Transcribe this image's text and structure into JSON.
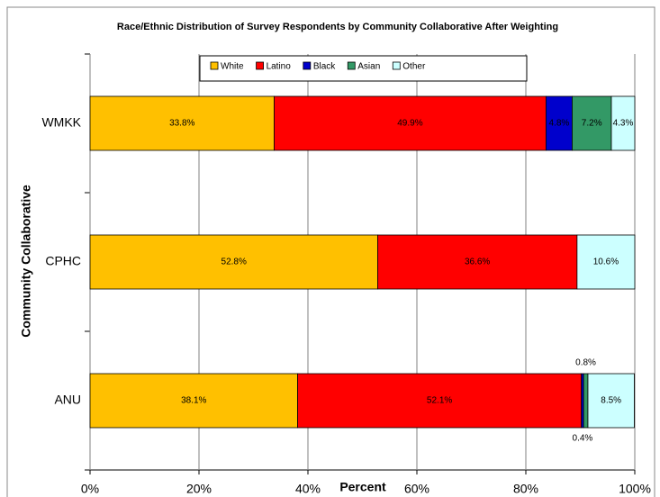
{
  "chart_data": {
    "type": "stacked-bar-horizontal",
    "title": "Race/Ethnic Distribution of Survey Respondents by Community Collaborative After Weighting",
    "x_label": "Percent",
    "y_label": "Community Collaborative",
    "categories": [
      "WMKK",
      "CPHC",
      "ANU"
    ],
    "series": [
      {
        "name": "White",
        "color": "#ffc000",
        "values": [
          33.8,
          52.8,
          38.1
        ],
        "value_labels": [
          "33.8%",
          "52.8%",
          "38.1%"
        ]
      },
      {
        "name": "Latino",
        "color": "#ff0000",
        "values": [
          49.9,
          36.6,
          52.1
        ],
        "value_labels": [
          "49.9%",
          "36.6%",
          "52.1%"
        ]
      },
      {
        "name": "Black",
        "color": "#0000cc",
        "values": [
          4.8,
          null,
          0.4
        ],
        "value_labels": [
          "4.8%",
          null,
          "0.4%"
        ]
      },
      {
        "name": "Asian",
        "color": "#339966",
        "values": [
          7.2,
          null,
          0.8
        ],
        "value_labels": [
          "7.2%",
          null,
          "0.8%"
        ]
      },
      {
        "name": "Other",
        "color": "#ccffff",
        "values": [
          4.3,
          10.6,
          8.5
        ],
        "value_labels": [
          "4.3%",
          "10.6%",
          "8.5%"
        ]
      }
    ],
    "xlim": [
      0,
      100
    ],
    "xticks": [
      {
        "value": 0,
        "label": "0%"
      },
      {
        "value": 20,
        "label": "20%"
      },
      {
        "value": 40,
        "label": "40%"
      },
      {
        "value": 60,
        "label": "60%"
      },
      {
        "value": 80,
        "label": "80%"
      },
      {
        "value": 100,
        "label": "100%"
      }
    ],
    "grid": true,
    "legend": "top"
  }
}
